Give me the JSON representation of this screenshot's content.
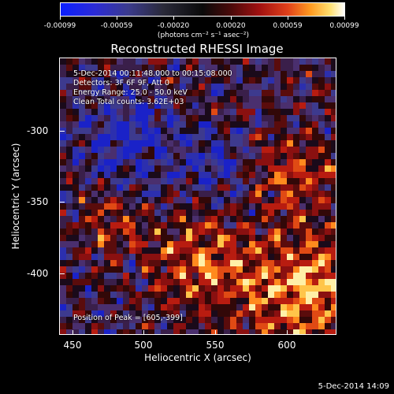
{
  "colorbar": {
    "ticks": [
      "-0.00099",
      "-0.00059",
      "-0.00020",
      "0.00020",
      "0.00059",
      "0.00099"
    ],
    "units": "(photons cm⁻² s⁻¹ asec⁻²)"
  },
  "title": "Reconstructed RHESSI Image",
  "info": {
    "line1": "5-Dec-2014 00:11:48.000 to 00:15:08.000",
    "line2": "Detectors: 3F 6F 9F, Att 0",
    "line3": "Energy Range: 25.0 - 50.0 keV",
    "line4": "Clean     Total counts: 3.62E+03",
    "peak": "Position of Peak = [605,-399]"
  },
  "axes": {
    "xlabel": "Heliocentric X (arcsec)",
    "ylabel": "Heliocentric Y (arcsec)",
    "xticks": [
      "450",
      "500",
      "550",
      "600"
    ],
    "yticks": [
      "-300",
      "-350",
      "-400"
    ]
  },
  "timestamp": "5-Dec-2014 14:09"
}
